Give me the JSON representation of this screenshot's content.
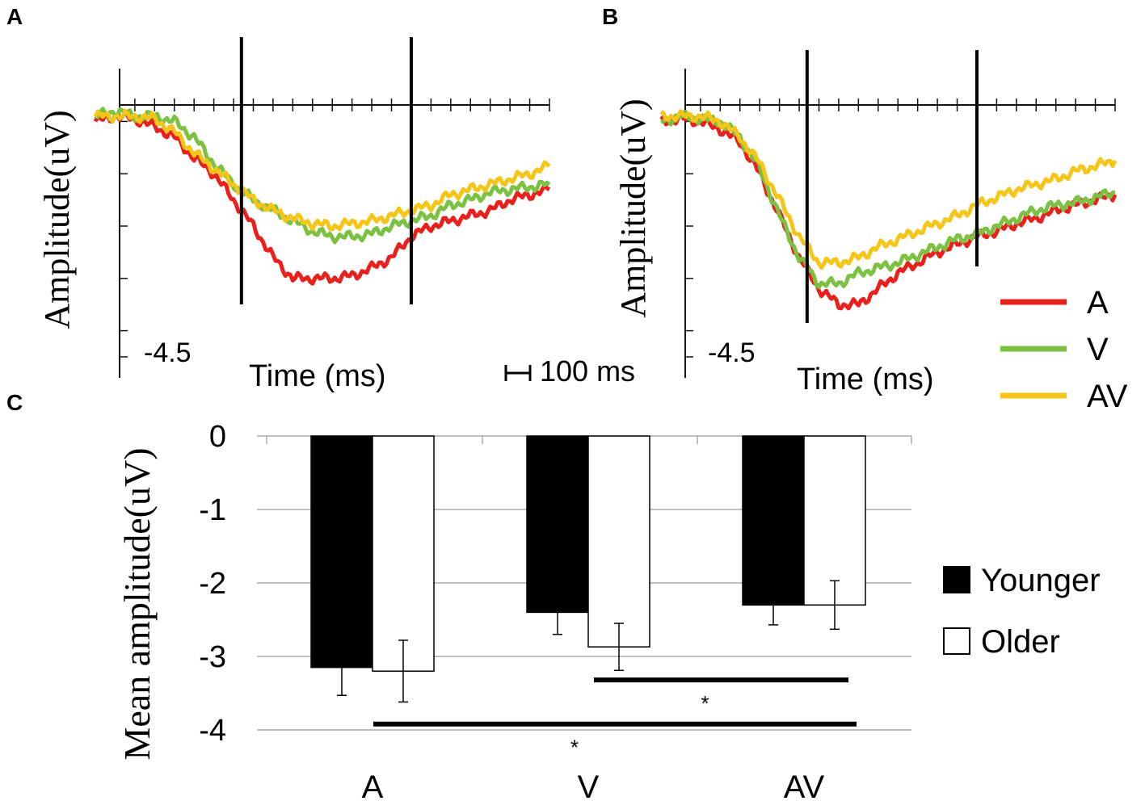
{
  "panels": {
    "a_label": "A",
    "b_label": "B",
    "c_label": "C"
  },
  "colors": {
    "A": "#e8211c",
    "V": "#7dc142",
    "AV": "#f5c518",
    "axis": "#111111",
    "marker": "#000000",
    "grid": "#aaaaaa"
  },
  "chart_data": [
    {
      "type": "line",
      "panel": "A",
      "ylabel": "Amplitude(uV)",
      "xlabel": "Time (ms)",
      "ymin_label": "-4.5",
      "scale_bar_label": "100 ms",
      "x_range_ms": [
        -100,
        1050
      ],
      "ylim": [
        -4.5,
        0.5
      ],
      "x_tick_step_ms": 50,
      "y_tick_step": 1,
      "markers_ms": [
        270,
        700
      ],
      "series": [
        {
          "name": "A",
          "points": [
            [
              -100,
              0.0
            ],
            [
              -50,
              0.1
            ],
            [
              0,
              0.05
            ],
            [
              50,
              -0.1
            ],
            [
              100,
              -0.3
            ],
            [
              150,
              -0.7
            ],
            [
              200,
              -1.0
            ],
            [
              250,
              -1.5
            ],
            [
              300,
              -2.0
            ],
            [
              350,
              -2.6
            ],
            [
              400,
              -3.0
            ],
            [
              450,
              -3.0
            ],
            [
              500,
              -3.0
            ],
            [
              550,
              -2.95
            ],
            [
              600,
              -2.8
            ],
            [
              650,
              -2.6
            ],
            [
              700,
              -2.2
            ],
            [
              750,
              -2.0
            ],
            [
              800,
              -1.9
            ],
            [
              850,
              -1.8
            ],
            [
              900,
              -1.7
            ],
            [
              950,
              -1.5
            ],
            [
              1000,
              -1.4
            ],
            [
              1050,
              -1.3
            ]
          ]
        },
        {
          "name": "V",
          "points": [
            [
              -100,
              0.1
            ],
            [
              -50,
              0.2
            ],
            [
              0,
              0.1
            ],
            [
              50,
              0.1
            ],
            [
              100,
              0.0
            ],
            [
              150,
              -0.3
            ],
            [
              200,
              -0.8
            ],
            [
              250,
              -1.2
            ],
            [
              300,
              -1.5
            ],
            [
              350,
              -1.7
            ],
            [
              400,
              -1.9
            ],
            [
              450,
              -2.1
            ],
            [
              500,
              -2.2
            ],
            [
              550,
              -2.2
            ],
            [
              600,
              -2.15
            ],
            [
              650,
              -2.0
            ],
            [
              700,
              -1.9
            ],
            [
              750,
              -1.8
            ],
            [
              800,
              -1.6
            ],
            [
              850,
              -1.5
            ],
            [
              900,
              -1.35
            ],
            [
              950,
              -1.3
            ],
            [
              1000,
              -1.25
            ],
            [
              1050,
              -1.2
            ]
          ]
        },
        {
          "name": "AV",
          "points": [
            [
              -100,
              0.1
            ],
            [
              -50,
              0.1
            ],
            [
              0,
              0.1
            ],
            [
              50,
              0.05
            ],
            [
              100,
              -0.2
            ],
            [
              150,
              -0.6
            ],
            [
              200,
              -0.9
            ],
            [
              250,
              -1.2
            ],
            [
              300,
              -1.5
            ],
            [
              350,
              -1.7
            ],
            [
              400,
              -1.85
            ],
            [
              450,
              -1.95
            ],
            [
              500,
              -2.0
            ],
            [
              550,
              -1.95
            ],
            [
              600,
              -1.9
            ],
            [
              650,
              -1.8
            ],
            [
              700,
              -1.7
            ],
            [
              750,
              -1.6
            ],
            [
              800,
              -1.4
            ],
            [
              850,
              -1.3
            ],
            [
              900,
              -1.2
            ],
            [
              950,
              -1.1
            ],
            [
              1000,
              -1.0
            ],
            [
              1050,
              -0.85
            ]
          ]
        }
      ]
    },
    {
      "type": "line",
      "panel": "B",
      "ylabel": "Amplitude(uV)",
      "xlabel": "Time (ms)",
      "ymin_label": "-4.5",
      "x_range_ms": [
        -100,
        1050
      ],
      "ylim": [
        -4.5,
        0.5
      ],
      "x_tick_step_ms": 50,
      "y_tick_step": 1,
      "markers_ms": [
        270,
        700
      ],
      "legend": [
        "A",
        "V",
        "AV"
      ],
      "series": [
        {
          "name": "A",
          "points": [
            [
              -100,
              0.0
            ],
            [
              -50,
              0.05
            ],
            [
              0,
              0.0
            ],
            [
              50,
              -0.15
            ],
            [
              100,
              -0.4
            ],
            [
              150,
              -1.0
            ],
            [
              200,
              -1.8
            ],
            [
              250,
              -2.6
            ],
            [
              300,
              -3.2
            ],
            [
              350,
              -3.5
            ],
            [
              400,
              -3.5
            ],
            [
              450,
              -3.2
            ],
            [
              500,
              -2.9
            ],
            [
              550,
              -2.7
            ],
            [
              600,
              -2.5
            ],
            [
              650,
              -2.35
            ],
            [
              700,
              -2.2
            ],
            [
              750,
              -2.1
            ],
            [
              800,
              -1.95
            ],
            [
              850,
              -1.85
            ],
            [
              900,
              -1.7
            ],
            [
              950,
              -1.6
            ],
            [
              1000,
              -1.5
            ],
            [
              1050,
              -1.4
            ]
          ]
        },
        {
          "name": "V",
          "points": [
            [
              -100,
              0.0
            ],
            [
              -50,
              0.1
            ],
            [
              0,
              0.05
            ],
            [
              50,
              0.0
            ],
            [
              100,
              -0.3
            ],
            [
              150,
              -0.9
            ],
            [
              200,
              -1.8
            ],
            [
              250,
              -2.6
            ],
            [
              300,
              -3.1
            ],
            [
              350,
              -3.1
            ],
            [
              400,
              -2.9
            ],
            [
              450,
              -2.8
            ],
            [
              500,
              -2.7
            ],
            [
              550,
              -2.55
            ],
            [
              600,
              -2.4
            ],
            [
              650,
              -2.25
            ],
            [
              700,
              -2.15
            ],
            [
              750,
              -2.0
            ],
            [
              800,
              -1.85
            ],
            [
              850,
              -1.7
            ],
            [
              900,
              -1.6
            ],
            [
              950,
              -1.55
            ],
            [
              1000,
              -1.45
            ],
            [
              1050,
              -1.35
            ]
          ]
        },
        {
          "name": "AV",
          "points": [
            [
              -100,
              0.1
            ],
            [
              -50,
              0.1
            ],
            [
              0,
              0.1
            ],
            [
              50,
              0.0
            ],
            [
              100,
              -0.3
            ],
            [
              150,
              -0.8
            ],
            [
              200,
              -1.5
            ],
            [
              250,
              -2.2
            ],
            [
              300,
              -2.7
            ],
            [
              350,
              -2.7
            ],
            [
              400,
              -2.6
            ],
            [
              450,
              -2.4
            ],
            [
              500,
              -2.25
            ],
            [
              550,
              -2.1
            ],
            [
              600,
              -1.95
            ],
            [
              650,
              -1.8
            ],
            [
              700,
              -1.6
            ],
            [
              750,
              -1.45
            ],
            [
              800,
              -1.3
            ],
            [
              850,
              -1.2
            ],
            [
              900,
              -1.1
            ],
            [
              950,
              -0.95
            ],
            [
              1000,
              -0.85
            ],
            [
              1050,
              -0.75
            ]
          ]
        }
      ]
    },
    {
      "type": "bar",
      "panel": "C",
      "ylabel": "Mean amplitude(uV)",
      "categories": [
        "A",
        "V",
        "AV"
      ],
      "y_ticks": [
        "0",
        "-1",
        "-2",
        "-3",
        "-4"
      ],
      "ylim": [
        -4,
        0
      ],
      "series": [
        {
          "name": "Younger",
          "fill": "#000000",
          "values": [
            -3.15,
            -2.4,
            -2.3
          ],
          "errors": [
            0.38,
            0.3,
            0.27
          ]
        },
        {
          "name": "Older",
          "fill": "#ffffff",
          "values": [
            -3.2,
            -2.87,
            -2.3
          ],
          "errors": [
            0.42,
            0.32,
            0.33
          ]
        }
      ],
      "significance": [
        {
          "from": "V",
          "to": "AV",
          "level": -3.32,
          "label": "*"
        },
        {
          "from": "A",
          "to": "AV",
          "level": -3.92,
          "label": "*"
        }
      ]
    }
  ]
}
